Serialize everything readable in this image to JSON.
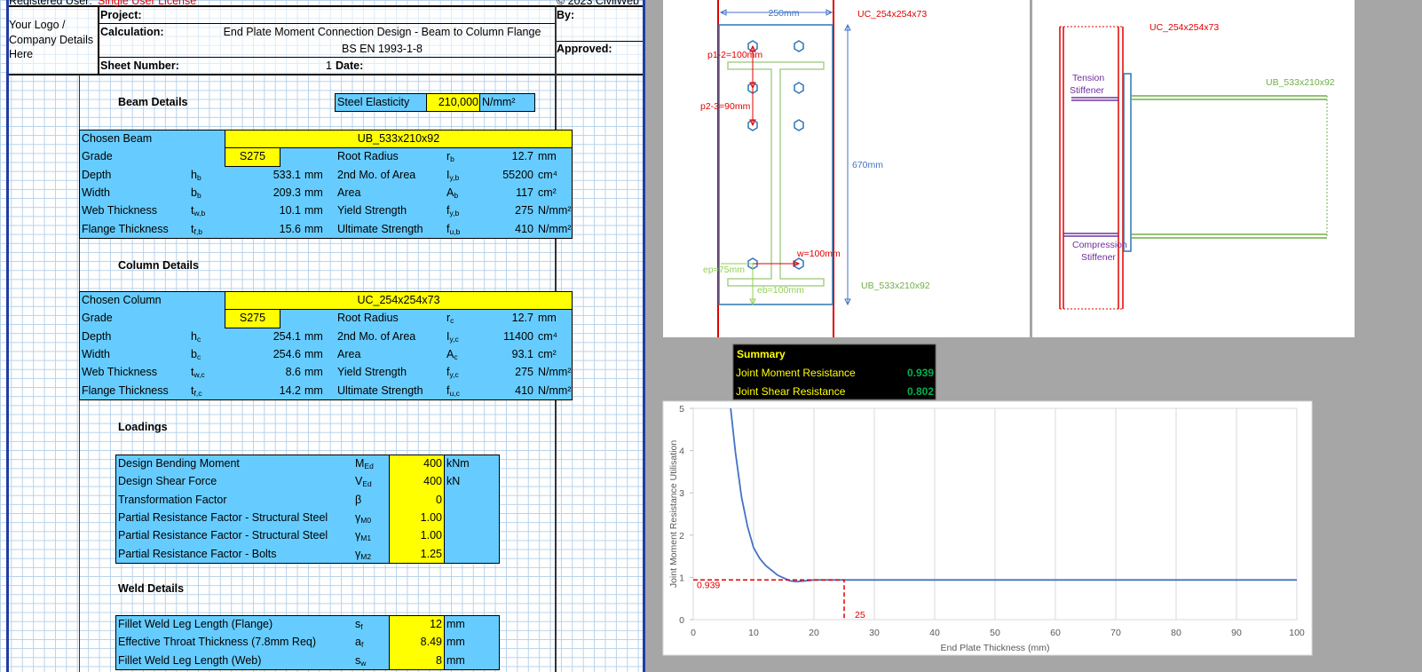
{
  "sheet": {
    "registered": "Registered User:",
    "license": "Single User License",
    "copyright": "© 2023 CivilWeb",
    "logo": "Your Logo / Company Details Here",
    "project": "Project:",
    "calculation": "Calculation:",
    "calc_title": "End Plate Moment Connection Design - Beam to Column Flange",
    "standard": "BS EN 1993-1-8",
    "sheet_number": "Sheet Number:",
    "sheet_no": 1,
    "date": "Date:",
    "by": "By:",
    "approved": "Approved:",
    "beam": {
      "heading": "Beam Details",
      "elasticity": {
        "label": "Steel Elasticity",
        "value": "210,000",
        "unit": "N/mm²"
      },
      "chosen": {
        "label": "Chosen Beam",
        "value": "UB_533x210x92"
      },
      "rows": [
        {
          "label": "Grade",
          "grade": "S275",
          "label2": "Root Radius",
          "sym2": {
            "m": "r",
            "s": "b"
          },
          "value2": 12.7,
          "unit2": "mm"
        },
        {
          "label": "Depth",
          "sym": {
            "m": "h",
            "s": "b"
          },
          "value": 533.1,
          "unit": "mm",
          "label2": "2nd Mo. of Area",
          "sym2": {
            "m": "I",
            "s": "y,b"
          },
          "value2": 55200,
          "unit2": "cm⁴"
        },
        {
          "label": "Width",
          "sym": {
            "m": "b",
            "s": "b"
          },
          "value": 209.3,
          "unit": "mm",
          "label2": "Area",
          "sym2": {
            "m": "A",
            "s": "b"
          },
          "value2": 117,
          "unit2": "cm²"
        },
        {
          "label": "Web Thickness",
          "sym": {
            "m": "t",
            "s": "w,b"
          },
          "value": 10.1,
          "unit": "mm",
          "label2": "Yield Strength",
          "sym2": {
            "m": "f",
            "s": "y,b"
          },
          "value2": 275,
          "unit2": "N/mm²"
        },
        {
          "label": "Flange Thickness",
          "sym": {
            "m": "t",
            "s": "f,b"
          },
          "value": 15.6,
          "unit": "mm",
          "label2": "Ultimate Strength",
          "sym2": {
            "m": "f",
            "s": "u,b"
          },
          "value2": 410,
          "unit2": "N/mm²"
        }
      ]
    },
    "column": {
      "heading": "Column Details",
      "chosen": {
        "label": "Chosen Column",
        "value": "UC_254x254x73"
      },
      "rows": [
        {
          "label": "Grade",
          "grade": "S275",
          "label2": "Root Radius",
          "sym2": {
            "m": "r",
            "s": "c"
          },
          "value2": 12.7,
          "unit2": "mm"
        },
        {
          "label": "Depth",
          "sym": {
            "m": "h",
            "s": "c"
          },
          "value": 254.1,
          "unit": "mm",
          "label2": "2nd Mo. of Area",
          "sym2": {
            "m": "I",
            "s": "y,c"
          },
          "value2": 11400,
          "unit2": "cm⁴"
        },
        {
          "label": "Width",
          "sym": {
            "m": "b",
            "s": "c"
          },
          "value": 254.6,
          "unit": "mm",
          "label2": "Area",
          "sym2": {
            "m": "A",
            "s": "c"
          },
          "value2": 93.1,
          "unit2": "cm²"
        },
        {
          "label": "Web Thickness",
          "sym": {
            "m": "t",
            "s": "w,c"
          },
          "value": 8.6,
          "unit": "mm",
          "label2": "Yield Strength",
          "sym2": {
            "m": "f",
            "s": "y,c"
          },
          "value2": 275,
          "unit2": "N/mm²"
        },
        {
          "label": "Flange Thickness",
          "sym": {
            "m": "t",
            "s": "f,c"
          },
          "value": 14.2,
          "unit": "mm",
          "label2": "Ultimate Strength",
          "sym2": {
            "m": "f",
            "s": "u,c"
          },
          "value2": 410,
          "unit2": "N/mm²"
        }
      ]
    },
    "loadings": {
      "heading": "Loadings",
      "rows": [
        {
          "label": "Design Bending Moment",
          "sym": {
            "m": "M",
            "s": "Ed"
          },
          "value": 400,
          "unit": "kNm"
        },
        {
          "label": "Design Shear Force",
          "sym": {
            "m": "V",
            "s": "Ed"
          },
          "value": 400,
          "unit": "kN"
        },
        {
          "label": "Transformation Factor",
          "sym": {
            "m": "β"
          },
          "value": 0
        },
        {
          "label": "Partial Resistance Factor - Structural Steel",
          "sym": {
            "m": "γ",
            "s": "M0"
          },
          "value": "1.00"
        },
        {
          "label": "Partial Resistance Factor - Structural Steel",
          "sym": {
            "m": "γ",
            "s": "M1"
          },
          "value": "1.00"
        },
        {
          "label": "Partial Resistance Factor - Bolts",
          "sym": {
            "m": "γ",
            "s": "M2"
          },
          "value": "1.25"
        }
      ]
    },
    "weld": {
      "heading": "Weld Details",
      "rows": [
        {
          "label": "Fillet Weld Leg Length (Flange)",
          "sym": {
            "m": "s",
            "s": "f"
          },
          "value": 12,
          "unit": "mm"
        },
        {
          "label": "Effective Throat Thickness (7.8mm Req)",
          "sym": {
            "m": "a",
            "s": "f"
          },
          "value": 8.49,
          "unit": "mm"
        },
        {
          "label": "Fillet Weld Leg Length (Web)",
          "sym": {
            "m": "s",
            "s": "w"
          },
          "value": 8,
          "unit": "mm"
        }
      ]
    }
  },
  "drawing_front": {
    "plate_width": "250mm",
    "column": "UC_254x254x73",
    "p12": "p1-2=100mm",
    "p23": "p2-3=90mm",
    "plate_depth": "670mm",
    "w": "w=100mm",
    "ep": "ep=75mm",
    "eb": "eb=100mm",
    "beam": "UB_533x210x92"
  },
  "drawing_side": {
    "column": "UC_254x254x73",
    "beam": "UB_533x210x92",
    "tension": [
      "Tension",
      "Stiffener"
    ],
    "compression": [
      "Compression",
      "Stiffener"
    ]
  },
  "summary": {
    "title": "Summary",
    "rows": [
      {
        "label": "Joint Moment Resistance",
        "value": 0.939
      },
      {
        "label": "Joint Shear Resistance",
        "value": 0.802
      }
    ]
  },
  "chart_data": {
    "type": "line",
    "x_label": "End Plate Thickness (mm)",
    "y_label": "Joint Moment Resistance Utilisation",
    "x": [
      6.2,
      7,
      8,
      9,
      10,
      11,
      12,
      14,
      16,
      17,
      18,
      20,
      25,
      100
    ],
    "series": [
      {
        "name": "Joint Moment Resistance Utilisation",
        "color": "#4472c4",
        "values": [
          5,
          3.95,
          2.9,
          2.2,
          1.7,
          1.45,
          1.28,
          1.05,
          0.92,
          0.9,
          0.91,
          0.939,
          0.939,
          0.939
        ]
      }
    ],
    "xlim": [
      0,
      100
    ],
    "xticks": [
      0,
      10,
      20,
      30,
      40,
      50,
      60,
      70,
      80,
      90,
      100
    ],
    "ylim": [
      0,
      5
    ],
    "yticks": [
      0,
      1,
      2,
      3,
      4,
      5
    ],
    "grid": true,
    "annotation": {
      "x": 25,
      "y": 0.939,
      "color": "#e00000"
    }
  }
}
